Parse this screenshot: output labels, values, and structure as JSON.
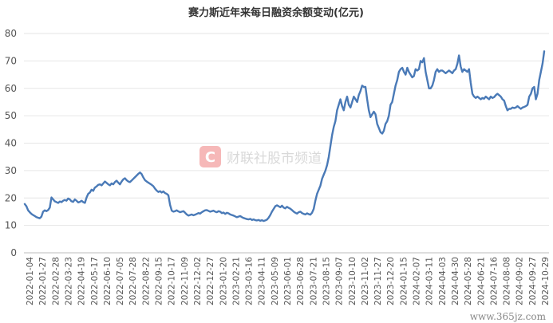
{
  "chart_data": {
    "type": "line",
    "title": "赛力斯近年来每日融资余额变动(亿元)",
    "xlabel": "",
    "ylabel": "",
    "ylim": [
      0,
      80
    ],
    "yticks": [
      0,
      10,
      20,
      30,
      40,
      50,
      60,
      70,
      80
    ],
    "grid": true,
    "legend": "none",
    "x_tick_labels": [
      "2022-01-04",
      "2022-01-27",
      "2022-02-28",
      "2022-03-23",
      "2022-04-19",
      "2022-05-17",
      "2022-06-10",
      "2022-07-05",
      "2022-07-28",
      "2022-08-22",
      "2022-09-15",
      "2022-10-17",
      "2022-11-09",
      "2022-12-02",
      "2022-12-27",
      "2023-01-20",
      "2023-02-21",
      "2023-03-16",
      "2023-04-11",
      "2023-05-09",
      "2023-06-01",
      "2023-06-28",
      "2023-07-21",
      "2023-08-15",
      "2023-09-07",
      "2023-10-10",
      "2023-11-02",
      "2023-11-27",
      "2023-12-20",
      "2024-01-15",
      "2024-02-07",
      "2024-03-11",
      "2024-04-03",
      "2024-04-30",
      "2024-05-28",
      "2024-06-21",
      "2024-07-16",
      "2024-08-08",
      "2024-09-02",
      "2024-09-27",
      "2024-10-29"
    ],
    "series": [
      {
        "color": "#4a7ab7",
        "values": [
          17.8,
          17.0,
          15.5,
          14.8,
          14.2,
          13.8,
          13.4,
          13.0,
          12.8,
          12.6,
          13.2,
          15.0,
          15.5,
          15.2,
          15.6,
          16.5,
          20.2,
          19.5,
          18.8,
          18.5,
          18.2,
          18.7,
          18.5,
          19.0,
          19.3,
          19.0,
          19.8,
          19.5,
          18.8,
          18.6,
          19.5,
          19.0,
          18.4,
          18.6,
          19.0,
          18.5,
          18.2,
          20.2,
          21.5,
          22.0,
          23.0,
          22.6,
          23.8,
          24.2,
          24.8,
          25.0,
          24.6,
          25.3,
          26.0,
          25.5,
          25.0,
          24.6,
          25.3,
          25.0,
          25.8,
          26.3,
          25.6,
          25.0,
          26.0,
          26.8,
          27.2,
          26.5,
          26.0,
          25.8,
          26.4,
          27.0,
          27.6,
          28.2,
          28.8,
          29.3,
          28.7,
          27.5,
          26.5,
          26.0,
          25.6,
          25.2,
          24.8,
          24.3,
          23.4,
          22.7,
          22.2,
          22.5,
          22.0,
          22.4,
          21.8,
          21.5,
          21.0,
          17.5,
          15.4,
          15.0,
          15.2,
          15.5,
          15.1,
          14.8,
          15.0,
          15.2,
          14.6,
          14.0,
          13.6,
          13.8,
          14.0,
          13.7,
          13.9,
          14.2,
          14.5,
          14.3,
          14.8,
          15.2,
          15.5,
          15.6,
          15.3,
          15.0,
          15.2,
          15.4,
          15.0,
          14.8,
          15.2,
          15.0,
          14.5,
          14.7,
          14.2,
          14.6,
          14.4,
          14.0,
          13.8,
          13.6,
          13.3,
          13.0,
          13.2,
          13.4,
          13.0,
          12.7,
          12.5,
          12.3,
          12.2,
          12.4,
          12.0,
          12.2,
          11.9,
          11.8,
          12.0,
          11.7,
          11.9,
          11.6,
          11.8,
          12.1,
          12.8,
          13.8,
          15.0,
          16.0,
          17.0,
          17.3,
          17.0,
          16.6,
          17.2,
          16.5,
          16.2,
          16.8,
          16.4,
          16.1,
          15.6,
          15.0,
          14.6,
          14.3,
          14.8,
          15.0,
          14.5,
          14.2,
          14.0,
          14.4,
          14.1,
          13.9,
          14.6,
          16.0,
          19.0,
          21.5,
          23.0,
          24.5,
          27.0,
          28.5,
          30.0,
          32.0,
          35.0,
          39.0,
          43.0,
          46.0,
          48.0,
          52.0,
          54.0,
          56.0,
          53.5,
          52.0,
          55.0,
          57.0,
          54.0,
          53.0,
          55.0,
          57.0,
          56.0,
          55.0,
          57.5,
          59.0,
          61.0,
          60.5,
          60.5,
          56.0,
          52.0,
          49.5,
          50.5,
          51.5,
          50.5,
          47.0,
          45.5,
          44.0,
          43.5,
          44.5,
          47.0,
          48.0,
          50.0,
          54.0,
          55.0,
          58.0,
          61.0,
          63.0,
          66.0,
          67.0,
          67.5,
          66.0,
          65.0,
          67.5,
          66.0,
          65.0,
          64.0,
          64.5,
          67.0,
          66.5,
          67.0,
          70.0,
          69.5,
          71.0,
          66.0,
          63.0,
          60.0,
          60.0,
          61.0,
          63.0,
          66.0,
          67.0,
          66.0,
          66.5,
          66.5,
          66.0,
          65.5,
          66.0,
          66.5,
          66.0,
          65.5,
          66.5,
          67.0,
          69.0,
          72.0,
          68.0,
          66.0,
          67.0,
          66.5,
          66.0,
          67.0,
          62.0,
          58.0,
          57.0,
          56.5,
          57.0,
          56.5,
          56.0,
          56.5,
          56.2,
          57.0,
          56.5,
          56.0,
          57.0,
          56.5,
          56.8,
          57.5,
          58.0,
          57.5,
          57.0,
          56.0,
          55.5,
          53.5,
          52.0,
          52.5,
          52.5,
          53.0,
          52.8,
          53.0,
          53.5,
          53.0,
          52.5,
          53.0,
          53.2,
          53.5,
          54.0,
          57.0,
          58.0,
          60.0,
          60.5,
          56.0,
          58.0,
          63.0,
          66.0,
          69.0,
          73.5
        ]
      }
    ]
  },
  "watermark": {
    "icon": "cailian-logo-icon",
    "text": "财联社股市频道"
  },
  "footer": {
    "text": "www.365jz.com"
  }
}
